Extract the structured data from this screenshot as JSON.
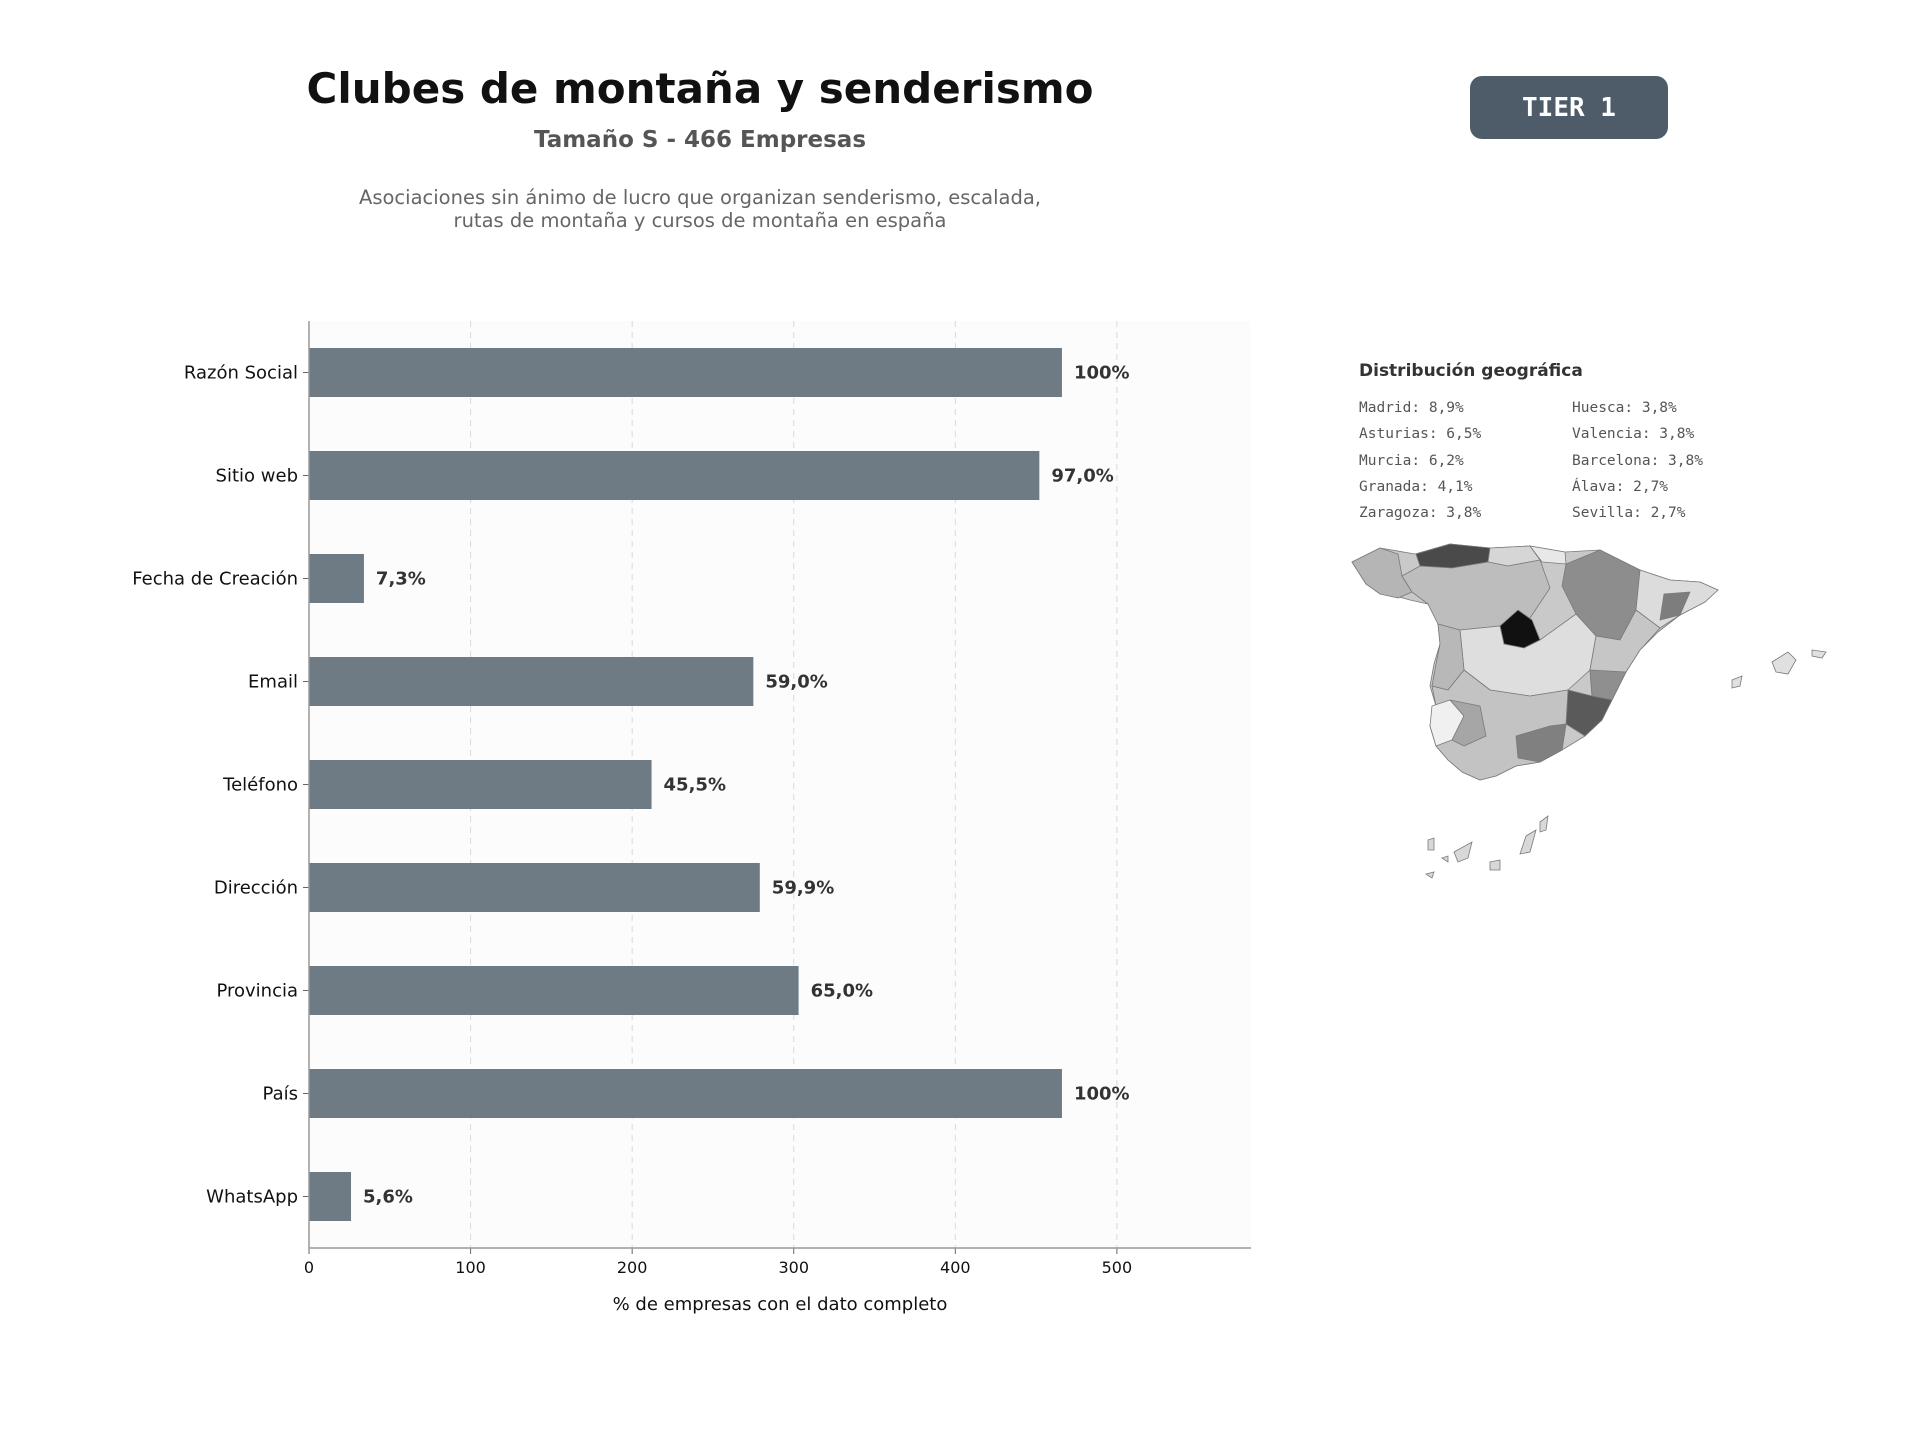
{
  "header": {
    "title": "Clubes de montaña y senderismo",
    "subtitle": "Tamaño S - 466 Empresas",
    "description_line1": "Asociaciones sin ánimo de lucro que organizan senderismo, escalada,",
    "description_line2": "rutas de montaña y cursos de montaña en españa",
    "tier_badge": "TIER 1"
  },
  "chart_data": {
    "type": "bar",
    "orientation": "horizontal",
    "categories": [
      "Razón Social",
      "Sitio web",
      "Fecha de Creación",
      "Email",
      "Teléfono",
      "Dirección",
      "Provincia",
      "País",
      "WhatsApp"
    ],
    "values": [
      466,
      452,
      34,
      275,
      212,
      279,
      303,
      466,
      26
    ],
    "data_labels": [
      "100%",
      "97,0%",
      "7,3%",
      "59,0%",
      "45,5%",
      "59,9%",
      "65,0%",
      "100%",
      "5,6%"
    ],
    "xlabel": "% de empresas con el dato completo",
    "ylabel": "",
    "xlim": [
      0,
      583
    ],
    "xticks": [
      0,
      100,
      200,
      300,
      400,
      500
    ],
    "grid": "vertical dashed",
    "bar_color": "#6e7a84",
    "background": "#fcfcfc"
  },
  "geo": {
    "title": "Distribución geográfica",
    "col1": [
      "Madrid: 8,9%",
      "Asturias: 6,5%",
      "Murcia: 6,2%",
      "Granada: 4,1%",
      "Zaragoza: 3,8%"
    ],
    "col2": [
      "Huesca: 3,8%",
      "Valencia: 3,8%",
      "Barcelona: 3,8%",
      "Álava: 2,7%",
      "Sevilla: 2,7%"
    ]
  }
}
